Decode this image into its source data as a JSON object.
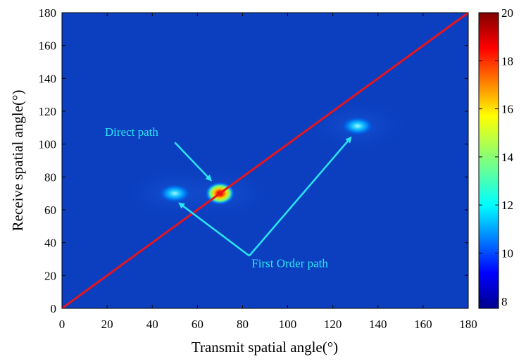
{
  "chart_data": {
    "type": "heatmap",
    "title": "",
    "xlabel": "Transmit spatial angle(°)",
    "ylabel": "Receive spatial angle(°)",
    "xlim": [
      0,
      180
    ],
    "ylim": [
      0,
      180
    ],
    "xticks": [
      "0",
      "20",
      "40",
      "60",
      "80",
      "100",
      "120",
      "140",
      "160",
      "180"
    ],
    "yticks": [
      "0",
      "20",
      "40",
      "60",
      "80",
      "100",
      "120",
      "140",
      "160",
      "180"
    ],
    "background_value": 8,
    "colorbar": {
      "range": [
        7.7,
        20
      ],
      "ticks": [
        "8",
        "10",
        "12",
        "14",
        "16",
        "18",
        "20"
      ],
      "colormap": "jet"
    },
    "peaks": [
      {
        "x": 70,
        "y": 70,
        "value": 20
      },
      {
        "x": 50,
        "y": 70,
        "value": 11
      },
      {
        "x": 131,
        "y": 111,
        "value": 10.5
      }
    ],
    "line": {
      "x": [
        0,
        180
      ],
      "y": [
        0,
        180
      ],
      "color": "#e8141c"
    },
    "annotations": [
      {
        "text": "Direct path",
        "x": 19,
        "y": 105,
        "color": "#29e6f0",
        "arrows": [
          {
            "from": [
              50,
              101
            ],
            "to": [
              66,
              78
            ]
          }
        ]
      },
      {
        "text": "First Order path",
        "x": 84,
        "y": 25,
        "color": "#29e6f0",
        "arrows": [
          {
            "from": [
              83,
              32
            ],
            "to": [
              52,
              64
            ]
          },
          {
            "from": [
              83,
              32
            ],
            "to": [
              128,
              104
            ]
          }
        ]
      }
    ]
  }
}
